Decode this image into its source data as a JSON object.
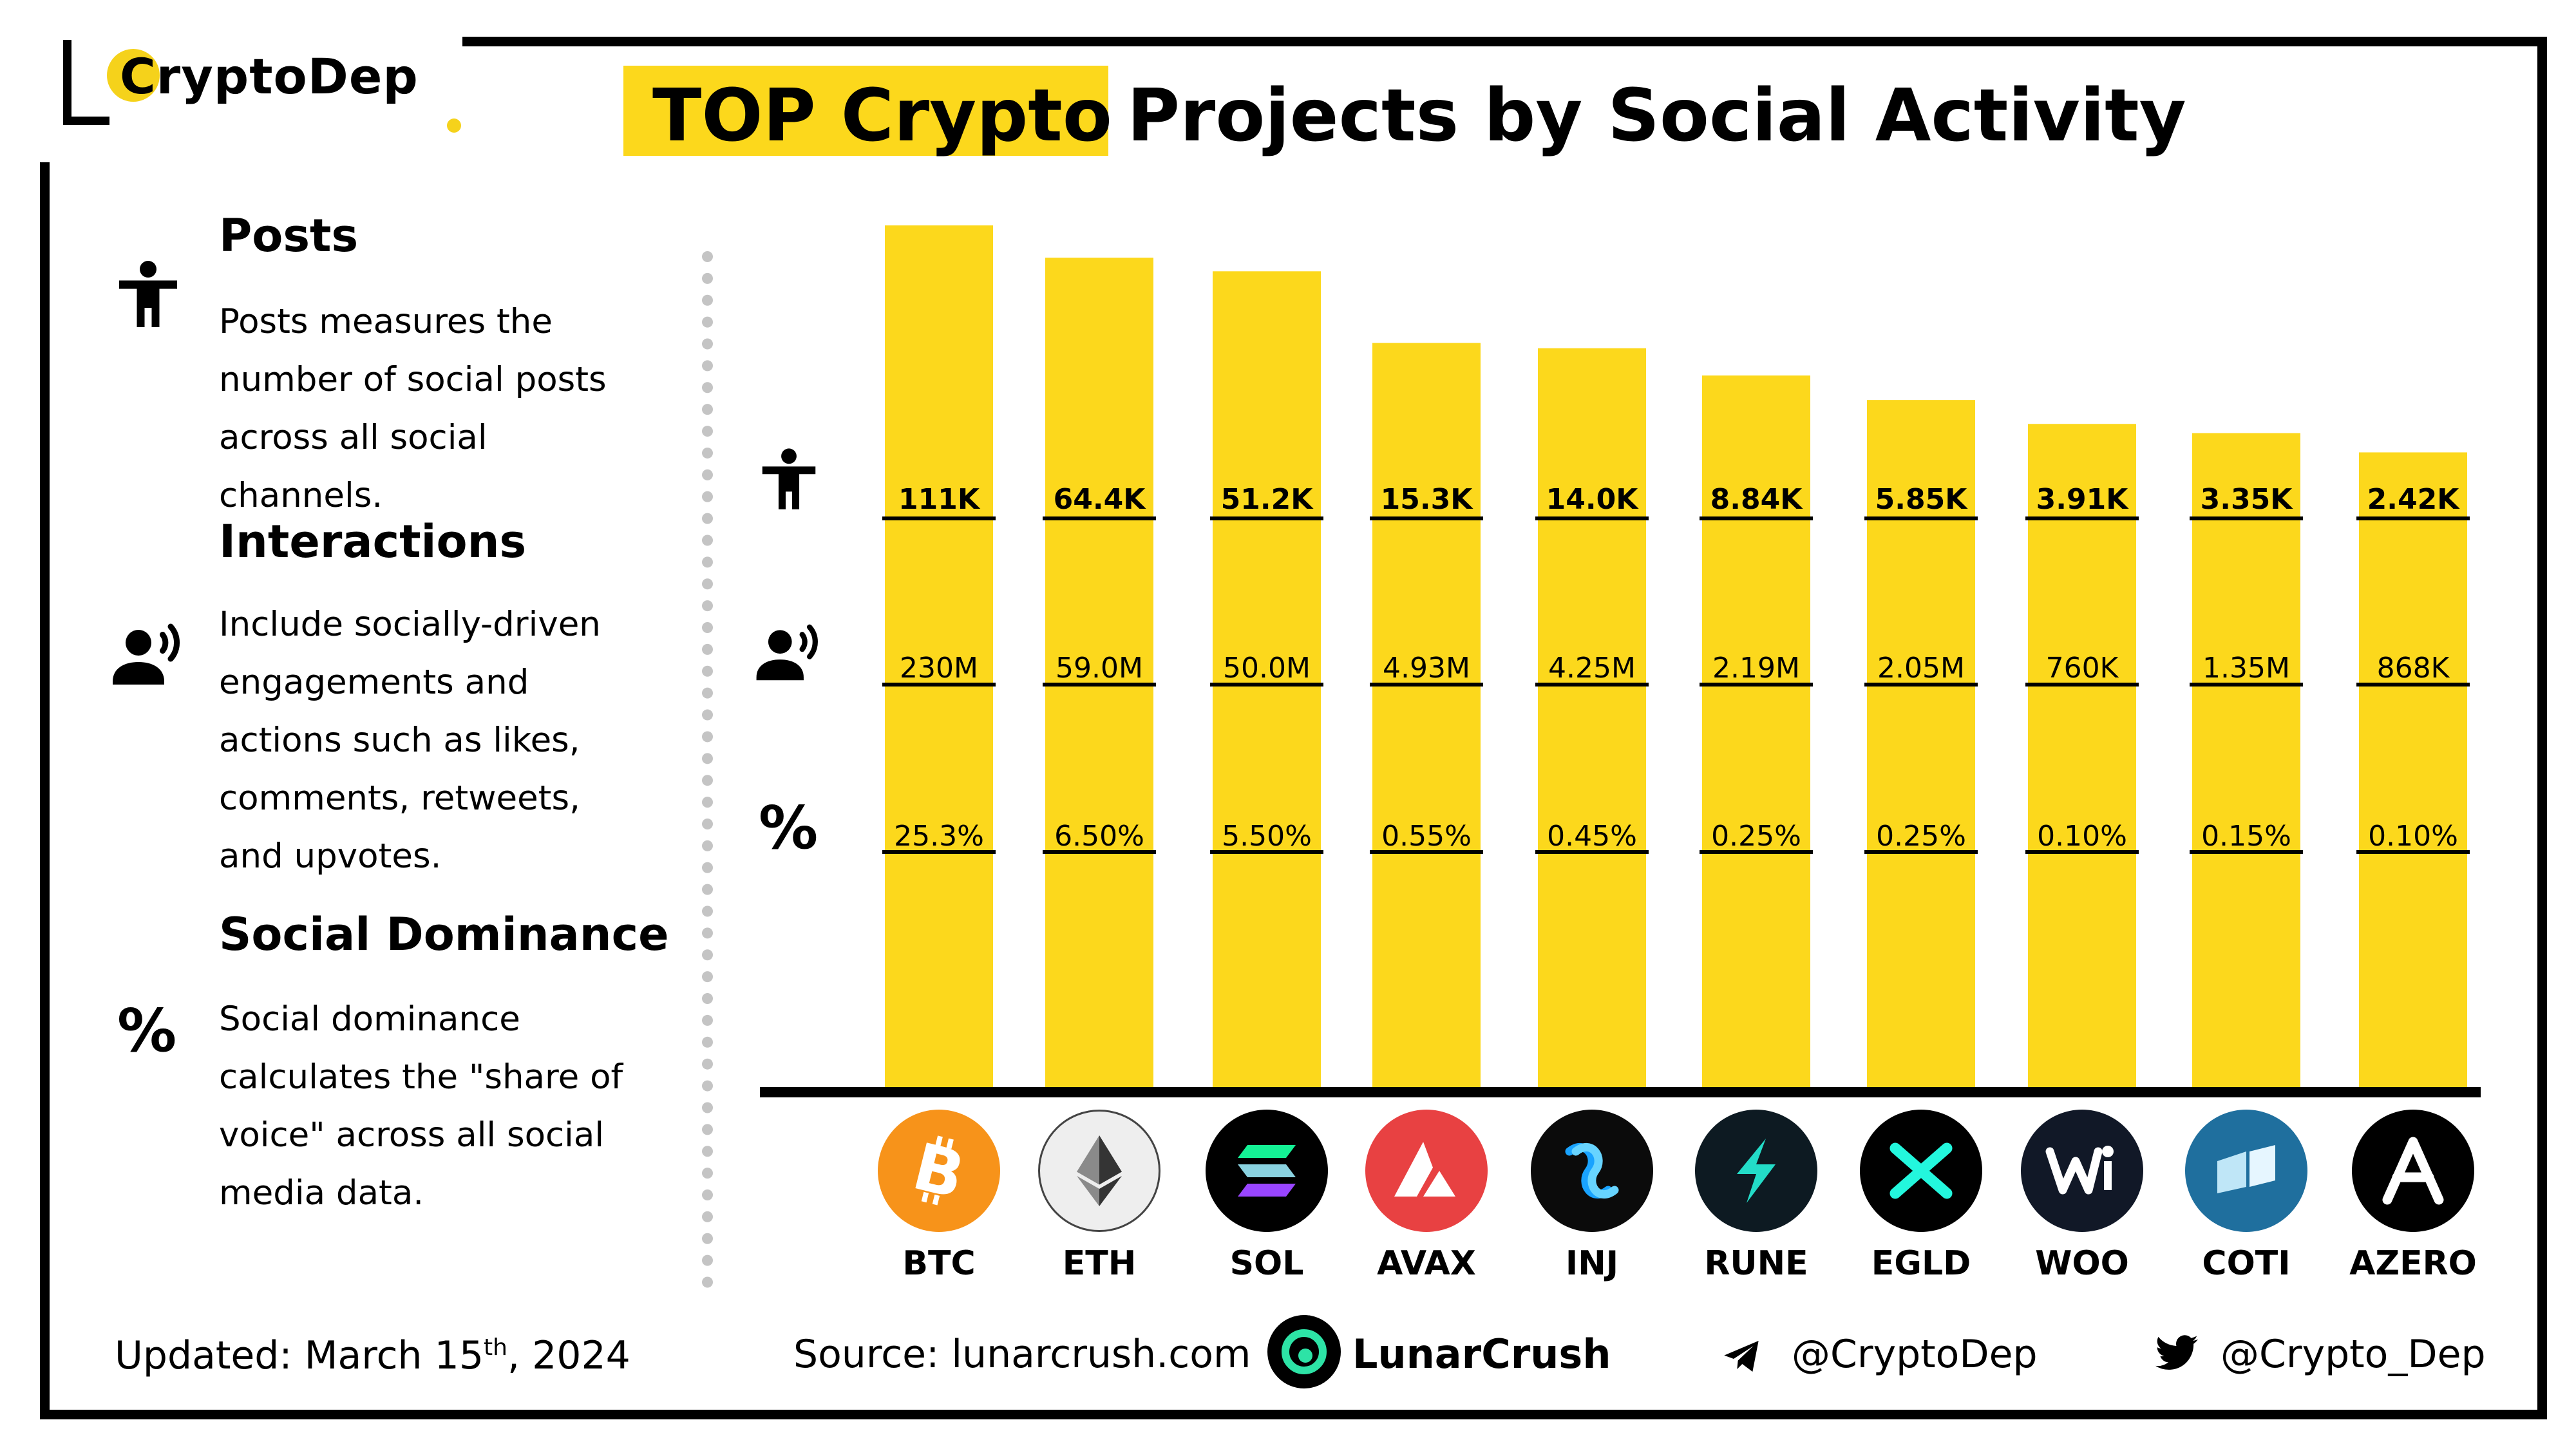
{
  "brand": {
    "name": "CryptoDep"
  },
  "title": {
    "highlight": "TOP Crypto",
    "rest": "Projects by Social Activity"
  },
  "legend": {
    "posts": {
      "heading": "Posts",
      "text": "Posts measures the number of social posts across all social channels.",
      "icon": "person-icon"
    },
    "interactions": {
      "heading": "Interactions",
      "text": "Include socially-driven engagements and actions such as likes, comments, retweets, and upvotes.",
      "icon": "speaking-person-icon"
    },
    "dominance": {
      "heading": "Social Dominance",
      "text": "Social dominance calculates the \"share of voice\" across all social media data.",
      "icon": "percent-icon",
      "glyph": "%"
    }
  },
  "chart_data": {
    "type": "bar",
    "title": "TOP Crypto Projects by Social Activity",
    "categories": [
      "BTC",
      "ETH",
      "SOL",
      "AVAX",
      "INJ",
      "RUNE",
      "EGLD",
      "WOO",
      "COTI",
      "AZERO"
    ],
    "values": [
      111,
      64.4,
      51.2,
      15.3,
      14.0,
      8.84,
      5.85,
      3.91,
      3.35,
      2.42
    ],
    "labels": {
      "posts": [
        "111K",
        "64.4K",
        "51.2K",
        "15.3K",
        "14.0K",
        "8.84K",
        "5.85K",
        "3.91K",
        "3.35K",
        "2.42K"
      ],
      "interactions": [
        "230M",
        "59.0M",
        "50.0M",
        "4.93M",
        "4.25M",
        "2.19M",
        "2.05M",
        "760K",
        "1.35M",
        "868K"
      ],
      "dominance": [
        "25.3%",
        "6.50%",
        "5.50%",
        "0.55%",
        "0.45%",
        "0.25%",
        "0.25%",
        "0.10%",
        "0.15%",
        "0.10%"
      ]
    },
    "bar_color": "#fcd81c",
    "grid": false,
    "yaxis_visible": false
  },
  "coins": [
    {
      "ticker": "BTC",
      "icon": "bitcoin-icon",
      "bg": "#f7931a"
    },
    {
      "ticker": "ETH",
      "icon": "ethereum-icon",
      "bg": "#eeeeee"
    },
    {
      "ticker": "SOL",
      "icon": "solana-icon",
      "bg": "#000000"
    },
    {
      "ticker": "AVAX",
      "icon": "avalanche-icon",
      "bg": "#e84142"
    },
    {
      "ticker": "INJ",
      "icon": "injective-icon",
      "bg": "#0b0b0b"
    },
    {
      "ticker": "RUNE",
      "icon": "thorchain-icon",
      "bg": "#0d1a22"
    },
    {
      "ticker": "EGLD",
      "icon": "multiversx-icon",
      "bg": "#000000"
    },
    {
      "ticker": "WOO",
      "icon": "woo-icon",
      "bg": "#111827"
    },
    {
      "ticker": "COTI",
      "icon": "coti-icon",
      "bg": "#1f6f9e"
    },
    {
      "ticker": "AZERO",
      "icon": "aleph-zero-icon",
      "bg": "#000000"
    }
  ],
  "footer": {
    "updated_label": "Updated:",
    "updated_date": "March 15",
    "updated_sup": "th",
    "updated_year": ", 2024",
    "source_label": "Source:",
    "source_value": "lunarcrush.com",
    "partner": "LunarCrush",
    "telegram": "@CryptoDep",
    "twitter": "@Crypto_Dep"
  }
}
